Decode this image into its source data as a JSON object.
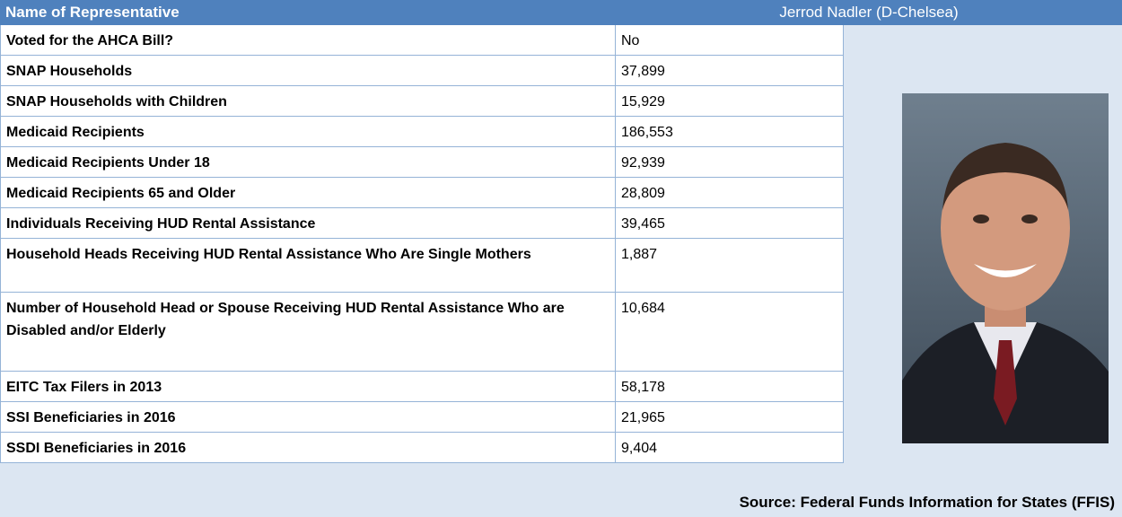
{
  "header": {
    "label": "Name of Representative",
    "name": "Jerrod Nadler (D-Chelsea)"
  },
  "table": {
    "rows": [
      [
        "Voted for the AHCA Bill?",
        "No"
      ],
      [
        "SNAP Households",
        "37,899"
      ],
      [
        "SNAP Households with Children",
        "15,929"
      ],
      [
        "Medicaid Recipients",
        "186,553"
      ],
      [
        "Medicaid Recipients Under 18",
        "92,939"
      ],
      [
        "Medicaid Recipients 65 and Older",
        "28,809"
      ],
      [
        "Individuals Receiving HUD Rental Assistance",
        "39,465"
      ],
      [
        "Household Heads Receiving HUD Rental Assistance Who Are Single Mothers",
        "1,887"
      ],
      [
        "Number of Household Head or Spouse Receiving HUD Rental Assistance Who are Disabled and/or Elderly",
        "10,684"
      ],
      [
        "EITC Tax Filers in 2013",
        "58,178"
      ],
      [
        "SSI Beneficiaries in 2016",
        "21,965"
      ],
      [
        "SSDI Beneficiaries in 2016",
        "9,404"
      ]
    ]
  },
  "source": "Source: Federal Funds Information for States (FFIS)"
}
